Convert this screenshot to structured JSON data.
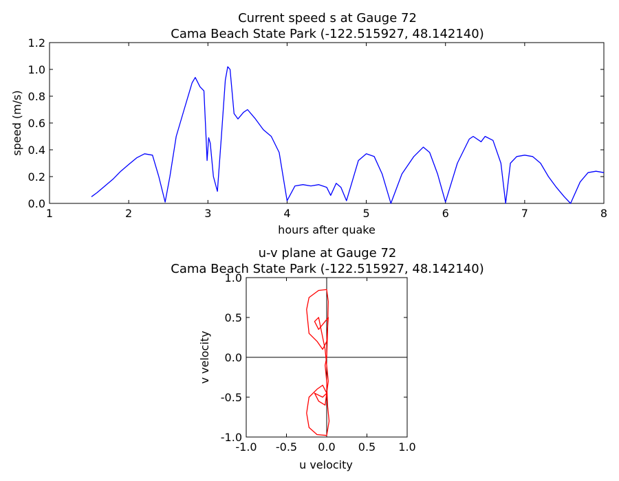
{
  "chart_data": [
    {
      "type": "line",
      "title": "Current speed s at Gauge 72",
      "subtitle": "Cama Beach State Park  (-122.515927, 48.142140)",
      "xlabel": "hours after quake",
      "ylabel": "speed (m/s)",
      "xlim": [
        1,
        8
      ],
      "ylim": [
        0,
        1.2
      ],
      "xticks": [
        1,
        2,
        3,
        4,
        5,
        6,
        7,
        8
      ],
      "yticks": [
        0.0,
        0.2,
        0.4,
        0.6,
        0.8,
        1.0,
        1.2
      ],
      "grid": false,
      "series": [
        {
          "color": "#0000ff",
          "points": [
            [
              1.53,
              0.05
            ],
            [
              1.6,
              0.08
            ],
            [
              1.7,
              0.13
            ],
            [
              1.8,
              0.18
            ],
            [
              1.9,
              0.24
            ],
            [
              2.0,
              0.29
            ],
            [
              2.1,
              0.34
            ],
            [
              2.2,
              0.37
            ],
            [
              2.3,
              0.36
            ],
            [
              2.38,
              0.2
            ],
            [
              2.46,
              0.01
            ],
            [
              2.52,
              0.2
            ],
            [
              2.6,
              0.5
            ],
            [
              2.7,
              0.7
            ],
            [
              2.8,
              0.9
            ],
            [
              2.84,
              0.94
            ],
            [
              2.9,
              0.87
            ],
            [
              2.95,
              0.84
            ],
            [
              2.98,
              0.45
            ],
            [
              2.99,
              0.32
            ],
            [
              3.01,
              0.49
            ],
            [
              3.03,
              0.45
            ],
            [
              3.07,
              0.2
            ],
            [
              3.12,
              0.09
            ],
            [
              3.17,
              0.5
            ],
            [
              3.22,
              0.92
            ],
            [
              3.25,
              1.02
            ],
            [
              3.28,
              1.0
            ],
            [
              3.33,
              0.67
            ],
            [
              3.38,
              0.63
            ],
            [
              3.45,
              0.68
            ],
            [
              3.5,
              0.7
            ],
            [
              3.6,
              0.63
            ],
            [
              3.7,
              0.55
            ],
            [
              3.8,
              0.5
            ],
            [
              3.9,
              0.38
            ],
            [
              4.0,
              0.02
            ],
            [
              4.1,
              0.13
            ],
            [
              4.2,
              0.14
            ],
            [
              4.3,
              0.13
            ],
            [
              4.4,
              0.14
            ],
            [
              4.5,
              0.12
            ],
            [
              4.55,
              0.06
            ],
            [
              4.62,
              0.15
            ],
            [
              4.68,
              0.12
            ],
            [
              4.75,
              0.02
            ],
            [
              4.9,
              0.32
            ],
            [
              5.0,
              0.37
            ],
            [
              5.1,
              0.35
            ],
            [
              5.2,
              0.22
            ],
            [
              5.31,
              0.0
            ],
            [
              5.45,
              0.22
            ],
            [
              5.6,
              0.35
            ],
            [
              5.72,
              0.42
            ],
            [
              5.8,
              0.38
            ],
            [
              5.9,
              0.22
            ],
            [
              6.0,
              0.01
            ],
            [
              6.15,
              0.3
            ],
            [
              6.3,
              0.48
            ],
            [
              6.35,
              0.5
            ],
            [
              6.45,
              0.46
            ],
            [
              6.5,
              0.5
            ],
            [
              6.6,
              0.47
            ],
            [
              6.7,
              0.3
            ],
            [
              6.76,
              0.0
            ],
            [
              6.82,
              0.3
            ],
            [
              6.9,
              0.35
            ],
            [
              7.0,
              0.36
            ],
            [
              7.1,
              0.35
            ],
            [
              7.2,
              0.3
            ],
            [
              7.3,
              0.2
            ],
            [
              7.4,
              0.12
            ],
            [
              7.5,
              0.05
            ],
            [
              7.58,
              0.0
            ],
            [
              7.7,
              0.16
            ],
            [
              7.8,
              0.23
            ],
            [
              7.9,
              0.24
            ],
            [
              8.0,
              0.23
            ]
          ]
        }
      ]
    },
    {
      "type": "line",
      "title": "u-v plane at Gauge 72",
      "subtitle": "Cama Beach State Park  (-122.515927, 48.142140)",
      "xlabel": "u velocity",
      "ylabel": "v velocity",
      "xlim": [
        -1.0,
        1.0
      ],
      "ylim": [
        -1.0,
        1.0
      ],
      "xticks": [
        -1.0,
        -0.5,
        0.0,
        0.5,
        1.0
      ],
      "yticks": [
        -1.0,
        -0.5,
        0.0,
        0.5,
        1.0
      ],
      "grid": false,
      "series": [
        {
          "color": "#ff0000",
          "points": [
            [
              0.0,
              0.0
            ],
            [
              0.01,
              0.3
            ],
            [
              0.02,
              0.7
            ],
            [
              0.0,
              0.85
            ],
            [
              -0.1,
              0.84
            ],
            [
              -0.22,
              0.75
            ],
            [
              -0.25,
              0.6
            ],
            [
              -0.22,
              0.3
            ],
            [
              -0.12,
              0.2
            ],
            [
              -0.05,
              0.1
            ],
            [
              0.0,
              0.2
            ],
            [
              0.02,
              0.5
            ],
            [
              -0.02,
              0.45
            ],
            [
              -0.1,
              0.35
            ],
            [
              -0.15,
              0.45
            ],
            [
              -0.1,
              0.5
            ],
            [
              -0.06,
              0.3
            ],
            [
              -0.02,
              0.1
            ],
            [
              0.0,
              -0.1
            ],
            [
              0.02,
              -0.3
            ],
            [
              0.0,
              -0.45
            ],
            [
              -0.05,
              -0.5
            ],
            [
              -0.15,
              -0.45
            ],
            [
              -0.1,
              -0.55
            ],
            [
              -0.02,
              -0.6
            ],
            [
              0.0,
              -0.45
            ],
            [
              -0.05,
              -0.35
            ],
            [
              -0.12,
              -0.4
            ],
            [
              -0.22,
              -0.5
            ],
            [
              -0.25,
              -0.7
            ],
            [
              -0.22,
              -0.88
            ],
            [
              -0.12,
              -0.97
            ],
            [
              0.0,
              -0.98
            ],
            [
              0.03,
              -0.8
            ],
            [
              0.01,
              -0.6
            ],
            [
              0.0,
              -0.3
            ],
            [
              -0.02,
              -0.1
            ],
            [
              0.0,
              0.0
            ]
          ]
        }
      ]
    }
  ]
}
